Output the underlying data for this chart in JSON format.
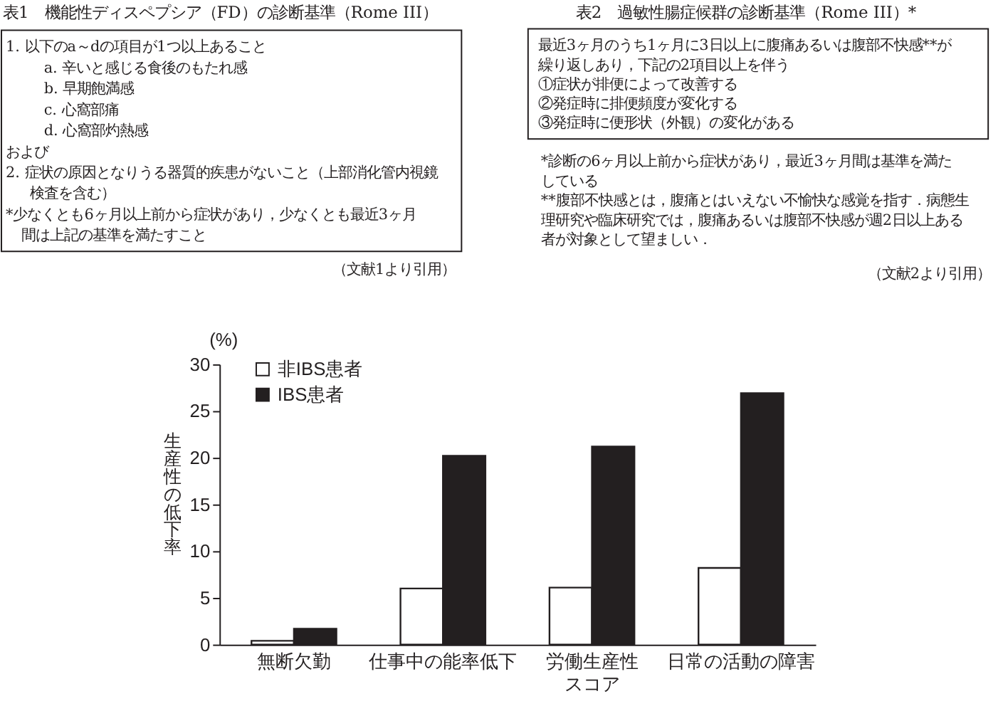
{
  "chart_data": [
    {
      "type": "other",
      "title": "表1　機能性ディスペプシア（FD）の診断基準（Rome III）",
      "annotations": [
        "1. 以下のa～dの項目が1つ以上あること",
        "a. 辛いと感じる食後のもたれ感",
        "b. 早期飽満感",
        "c. 心窩部痛",
        "d. 心窩部灼熱感",
        "および",
        "2. 症状の原因となりうる器質的疾患がないこと（上部消化管内視鏡",
        "検査を含む）",
        "*少なくとも6ヶ月以上前から症状があり，少なくとも最近3ヶ月",
        "間は上記の基準を満たすこと",
        "（文献1より引用）"
      ]
    },
    {
      "type": "other",
      "title": "表2　過敏性腸症候群の診断基準（Rome III）*",
      "annotations": [
        "最近3ヶ月のうち1ヶ月に3日以上に腹痛あるいは腹部不快感**が",
        "繰り返しあり，下記の2項目以上を伴う",
        "①症状が排便によって改善する",
        "②発症時に排便頻度が変化する",
        "③発症時に便形状（外観）の変化がある",
        "*診断の6ヶ月以上前から症状があり，最近3ヶ月間は基準を満た",
        "している",
        "**腹部不快感とは，腹痛とはいえない不愉快な感覚を指す．病態生",
        "理研究や臨床研究では，腹痛あるいは腹部不快感が週2日以上ある",
        "者が対象として望ましい．",
        "（文献2より引用）"
      ]
    },
    {
      "type": "bar",
      "categories": [
        "無断欠勤",
        "仕事中の能率低下",
        "労働生産性スコア",
        "日常の活動の障害"
      ],
      "series": [
        {
          "name": "非IBS患者",
          "color": "#ffffff",
          "values": [
            0.4,
            6.0,
            6.1,
            8.2
          ]
        },
        {
          "name": "IBS患者",
          "color": "#231f20",
          "values": [
            1.7,
            20.2,
            21.2,
            26.9
          ]
        }
      ],
      "ylabel": "生産性の低下率",
      "annotations": [
        "(%)"
      ],
      "ylim": [
        0,
        30
      ],
      "yticks": [
        0,
        5,
        10,
        15,
        20,
        25,
        30
      ],
      "grid": false,
      "legend": "top left"
    }
  ]
}
